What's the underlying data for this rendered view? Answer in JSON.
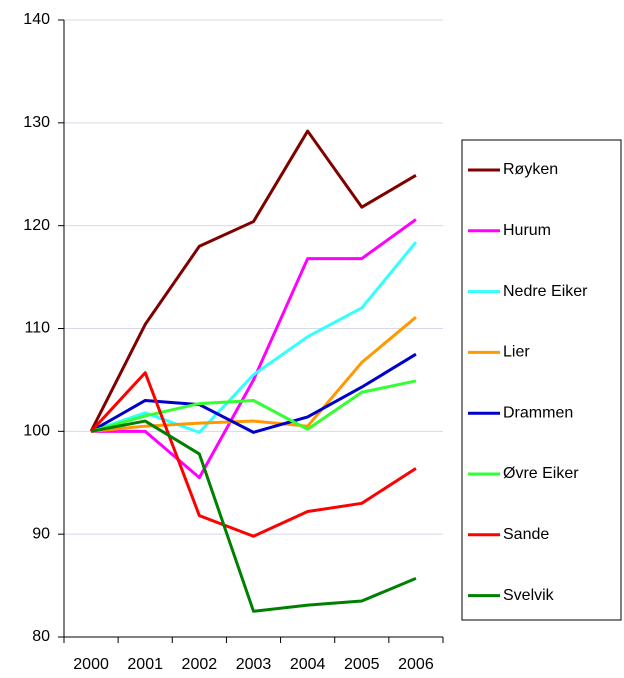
{
  "chart_data": {
    "type": "line",
    "categories": [
      "2000",
      "2001",
      "2002",
      "2003",
      "2004",
      "2005",
      "2006"
    ],
    "series": [
      {
        "name": "Røyken",
        "color": "#800000",
        "values": [
          100,
          110.4,
          118,
          120.4,
          129.2,
          121.8,
          124.9
        ]
      },
      {
        "name": "Hurum",
        "color": "#ff00ff",
        "values": [
          100,
          100,
          95.5,
          105,
          116.8,
          116.8,
          120.6
        ]
      },
      {
        "name": "Nedre Eiker",
        "color": "#33ffff",
        "values": [
          100,
          101.8,
          99.9,
          105.5,
          109.2,
          112,
          118.4
        ]
      },
      {
        "name": "Lier",
        "color": "#ff9900",
        "values": [
          100,
          100.5,
          100.8,
          101,
          100.5,
          106.7,
          111.1
        ]
      },
      {
        "name": "Drammen",
        "color": "#0000cc",
        "values": [
          100,
          103,
          102.6,
          99.9,
          101.4,
          104.3,
          107.5
        ]
      },
      {
        "name": "Øvre Eiker",
        "color": "#33ff33",
        "values": [
          100,
          101.5,
          102.7,
          103,
          100.2,
          103.8,
          104.9
        ]
      },
      {
        "name": "Sande",
        "color": "#ff0000",
        "values": [
          100,
          105.7,
          91.8,
          89.8,
          92.2,
          93,
          96.4
        ]
      },
      {
        "name": "Svelvik",
        "color": "#008000",
        "values": [
          100,
          101,
          97.8,
          82.5,
          83.1,
          83.5,
          85.7
        ]
      }
    ],
    "ylim": [
      80,
      140
    ],
    "yticks": [
      80,
      90,
      100,
      110,
      120,
      130,
      140
    ],
    "grid": true,
    "legend": "right"
  }
}
